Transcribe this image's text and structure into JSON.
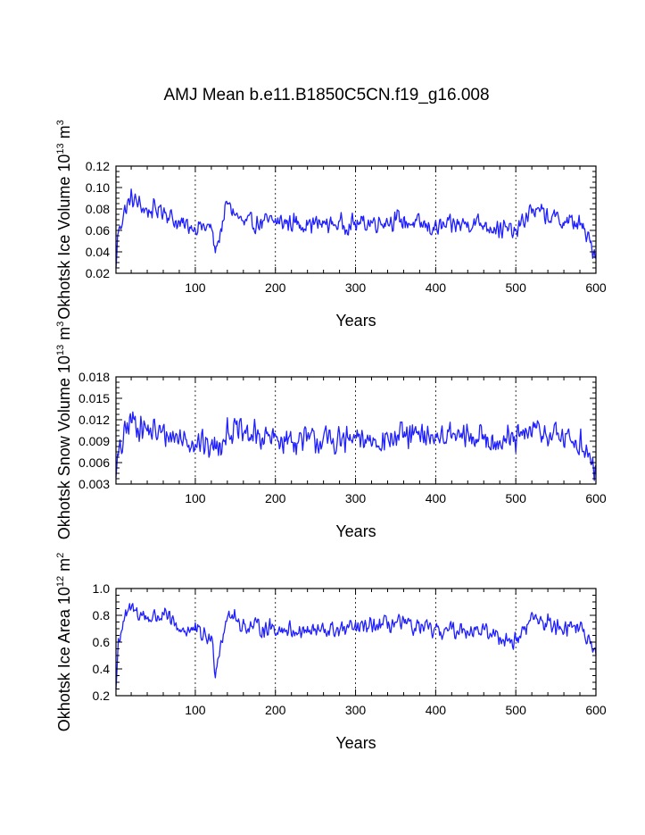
{
  "title": "AMJ Mean b.e11.B1850C5CN.f19_g16.008",
  "colors": {
    "line": "#1f1fff",
    "axis": "#000000",
    "background": "#ffffff"
  },
  "chart_data": [
    {
      "type": "line",
      "ylabel": "Okhotsk Ice Volume 10",
      "ylabel_exp": "13",
      "ylabel_unit": " m",
      "ylabel_unit_exp": "3",
      "xlabel": "Years",
      "xlim": [
        1,
        600
      ],
      "ylim": [
        0.02,
        0.12
      ],
      "xticks": [
        100,
        200,
        300,
        400,
        500,
        600
      ],
      "yticks": [
        0.02,
        0.04,
        0.06,
        0.08,
        0.1,
        0.12
      ],
      "yticklabels": [
        "0.02",
        "0.04",
        "0.06",
        "0.08",
        "0.10",
        "0.12"
      ],
      "grid": "vertical dashed at x ticks",
      "series": [
        {
          "name": "Okhotsk Ice Volume",
          "x_start": 1,
          "x_end": 600,
          "profile": [
            [
              1,
              0.022
            ],
            [
              3,
              0.055
            ],
            [
              10,
              0.075
            ],
            [
              20,
              0.09
            ],
            [
              40,
              0.078
            ],
            [
              60,
              0.08
            ],
            [
              80,
              0.065
            ],
            [
              100,
              0.064
            ],
            [
              120,
              0.062
            ],
            [
              125,
              0.04
            ],
            [
              140,
              0.085
            ],
            [
              160,
              0.066
            ],
            [
              200,
              0.068
            ],
            [
              250,
              0.066
            ],
            [
              300,
              0.066
            ],
            [
              350,
              0.07
            ],
            [
              400,
              0.062
            ],
            [
              450,
              0.068
            ],
            [
              500,
              0.058
            ],
            [
              520,
              0.08
            ],
            [
              550,
              0.07
            ],
            [
              580,
              0.066
            ],
            [
              600,
              0.038
            ]
          ],
          "noise": 0.011,
          "ymin": 0.022,
          "ymax": 0.105
        }
      ]
    },
    {
      "type": "line",
      "ylabel": "Okhotsk Snow Volume 10",
      "ylabel_exp": "13",
      "ylabel_unit": " m",
      "ylabel_unit_exp": "3",
      "xlabel": "Years",
      "xlim": [
        1,
        600
      ],
      "ylim": [
        0.003,
        0.018
      ],
      "xticks": [
        100,
        200,
        300,
        400,
        500,
        600
      ],
      "yticks": [
        0.003,
        0.006,
        0.009,
        0.012,
        0.015,
        0.018
      ],
      "yticklabels": [
        "0.003",
        "0.006",
        "0.009",
        "0.012",
        "0.015",
        "0.018"
      ],
      "grid": "vertical dashed at x ticks",
      "series": [
        {
          "name": "Okhotsk Snow Volume",
          "x_start": 1,
          "x_end": 600,
          "profile": [
            [
              1,
              0.005
            ],
            [
              5,
              0.007
            ],
            [
              15,
              0.011
            ],
            [
              20,
              0.012
            ],
            [
              40,
              0.0105
            ],
            [
              60,
              0.01
            ],
            [
              100,
              0.009
            ],
            [
              125,
              0.008
            ],
            [
              140,
              0.0105
            ],
            [
              200,
              0.0092
            ],
            [
              300,
              0.009
            ],
            [
              350,
              0.0095
            ],
            [
              400,
              0.0098
            ],
            [
              450,
              0.0095
            ],
            [
              500,
              0.009
            ],
            [
              520,
              0.0105
            ],
            [
              580,
              0.009
            ],
            [
              600,
              0.0045
            ]
          ],
          "noise": 0.0024,
          "ymin": 0.0035,
          "ymax": 0.0181
        }
      ]
    },
    {
      "type": "line",
      "ylabel": "Okhotsk Ice Area 10",
      "ylabel_exp": "12",
      "ylabel_unit": " m",
      "ylabel_unit_exp": "2",
      "xlabel": "Years",
      "xlim": [
        1,
        600
      ],
      "ylim": [
        0.2,
        1.0
      ],
      "xticks": [
        100,
        200,
        300,
        400,
        500,
        600
      ],
      "yticks": [
        0.2,
        0.4,
        0.6,
        0.8,
        1.0
      ],
      "yticklabels": [
        "0.2",
        "0.4",
        "0.6",
        "0.8",
        "1.0"
      ],
      "grid": "vertical dashed at x ticks",
      "series": [
        {
          "name": "Okhotsk Ice Area",
          "x_start": 1,
          "x_end": 600,
          "profile": [
            [
              1,
              0.25
            ],
            [
              4,
              0.6
            ],
            [
              10,
              0.75
            ],
            [
              20,
              0.85
            ],
            [
              40,
              0.78
            ],
            [
              60,
              0.8
            ],
            [
              80,
              0.7
            ],
            [
              100,
              0.68
            ],
            [
              120,
              0.62
            ],
            [
              125,
              0.4
            ],
            [
              140,
              0.82
            ],
            [
              160,
              0.72
            ],
            [
              200,
              0.7
            ],
            [
              250,
              0.68
            ],
            [
              300,
              0.7
            ],
            [
              350,
              0.74
            ],
            [
              400,
              0.68
            ],
            [
              450,
              0.7
            ],
            [
              500,
              0.6
            ],
            [
              520,
              0.78
            ],
            [
              550,
              0.72
            ],
            [
              580,
              0.72
            ],
            [
              600,
              0.48
            ]
          ],
          "noise": 0.08,
          "ymin": 0.25,
          "ymax": 0.93
        }
      ]
    }
  ]
}
